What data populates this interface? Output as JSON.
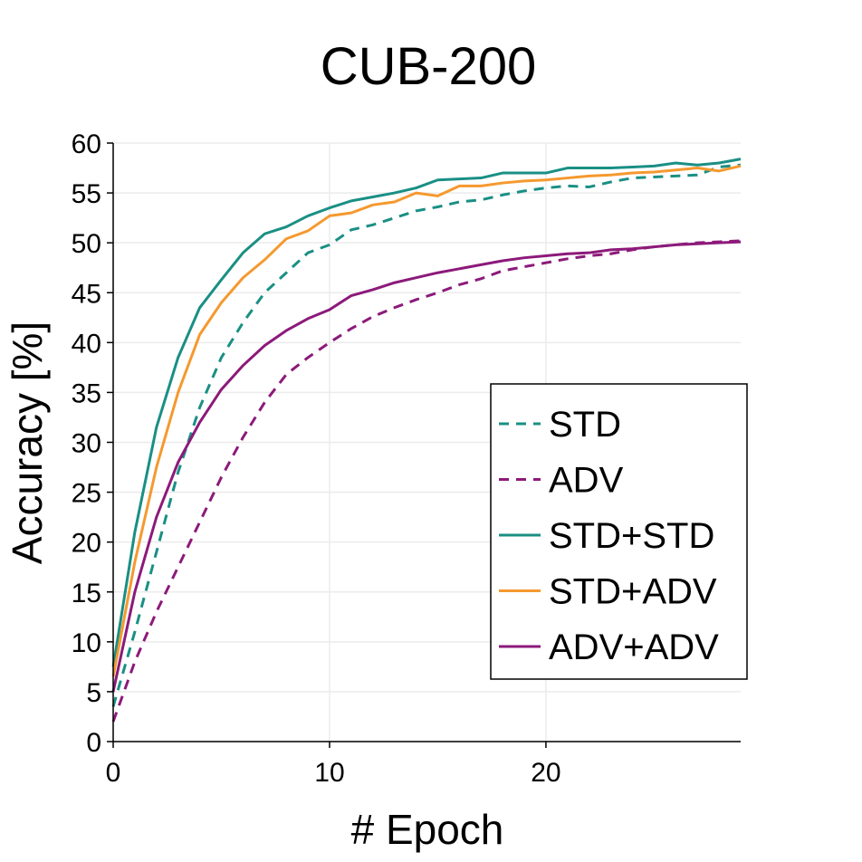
{
  "chart_data": {
    "type": "line",
    "title": "CUB-200",
    "xlabel": "# Epoch",
    "ylabel": "Accuracy [%]",
    "xlim": [
      0,
      29
    ],
    "ylim": [
      0,
      60
    ],
    "xticks": [
      0,
      10,
      20
    ],
    "yticks": [
      0,
      5,
      10,
      15,
      20,
      25,
      30,
      35,
      40,
      45,
      50,
      55,
      60
    ],
    "grid": true,
    "legend_position": "lower-right",
    "x": [
      0,
      1,
      2,
      3,
      4,
      5,
      6,
      7,
      8,
      9,
      10,
      11,
      12,
      13,
      14,
      15,
      16,
      17,
      18,
      19,
      20,
      21,
      22,
      23,
      24,
      25,
      26,
      27,
      28,
      29
    ],
    "series": [
      {
        "name": "STD",
        "color": "#1a8f84",
        "style": "dashed",
        "values": [
          3.5,
          11,
          19,
          27,
          33.5,
          38.5,
          42,
          45,
          47,
          49,
          49.8,
          51.3,
          51.8,
          52.5,
          53.2,
          53.6,
          54.1,
          54.3,
          54.8,
          55.2,
          55.5,
          55.7,
          55.6,
          56.1,
          56.5,
          56.6,
          56.7,
          56.8,
          57.6,
          57.8
        ]
      },
      {
        "name": "ADV",
        "color": "#8c1a7a",
        "style": "dashed",
        "values": [
          2,
          8,
          13,
          17.5,
          22,
          26.5,
          30.5,
          34,
          36.8,
          38.5,
          40,
          41.4,
          42.6,
          43.5,
          44.3,
          45,
          45.8,
          46.4,
          47.2,
          47.6,
          48,
          48.4,
          48.7,
          48.9,
          49.3,
          49.6,
          49.8,
          50,
          50.1,
          50.2
        ]
      },
      {
        "name": "STD+STD",
        "color": "#1a8f84",
        "style": "solid",
        "values": [
          7.5,
          21,
          31.5,
          38.5,
          43.5,
          46.3,
          49,
          50.9,
          51.6,
          52.7,
          53.5,
          54.2,
          54.6,
          55,
          55.5,
          56.3,
          56.4,
          56.5,
          57,
          57,
          57,
          57.5,
          57.5,
          57.5,
          57.6,
          57.7,
          58,
          57.8,
          58,
          58.4
        ]
      },
      {
        "name": "STD+ADV",
        "color": "#f5992f",
        "style": "solid",
        "values": [
          6.5,
          18,
          27.5,
          35,
          40.8,
          44,
          46.5,
          48.3,
          50.4,
          51.2,
          52.7,
          53,
          53.8,
          54.1,
          55,
          54.7,
          55.7,
          55.7,
          56,
          56.2,
          56.3,
          56.5,
          56.7,
          56.8,
          57,
          57.1,
          57.3,
          57.5,
          57.2,
          57.7
        ]
      },
      {
        "name": "ADV+ADV",
        "color": "#8c1a7a",
        "style": "solid",
        "values": [
          5,
          15,
          22.5,
          28,
          32,
          35.3,
          37.7,
          39.7,
          41.2,
          42.4,
          43.3,
          44.7,
          45.3,
          46,
          46.5,
          47,
          47.4,
          47.8,
          48.2,
          48.5,
          48.7,
          48.9,
          49,
          49.3,
          49.4,
          49.6,
          49.8,
          49.9,
          50,
          50.1
        ]
      }
    ]
  }
}
